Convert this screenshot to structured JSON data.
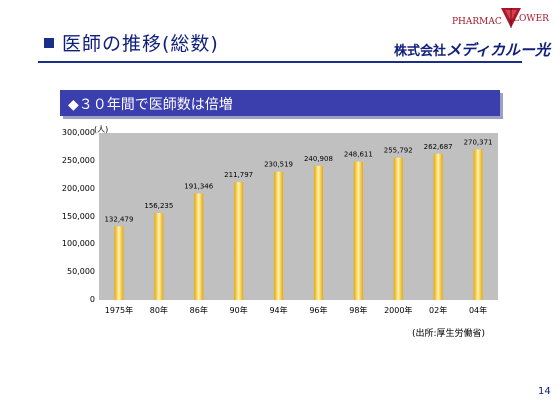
{
  "header": {
    "title": "医師の推移(総数)",
    "logo": {
      "brand_top_left": "PHARMAC",
      "brand_top_right": "LOWER",
      "company_prefix": "株式会社",
      "company_name": "メディカルー光"
    }
  },
  "banner": {
    "text": "◆３０年間で医師数は倍増"
  },
  "chart_data": {
    "type": "bar",
    "title": "",
    "ylabel": "(人)",
    "xlabel": "",
    "categories": [
      "1975年",
      "80年",
      "86年",
      "90年",
      "94年",
      "96年",
      "98年",
      "2000年",
      "02年",
      "04年"
    ],
    "values": [
      132479,
      156235,
      191346,
      211797,
      230519,
      240908,
      248611,
      255792,
      262687,
      270371
    ],
    "value_labels": [
      "132,479",
      "156,235",
      "191,346",
      "211,797",
      "230,519",
      "240,908",
      "248,611",
      "255,792",
      "262,687",
      "270,371"
    ],
    "ylim": [
      0,
      300000
    ],
    "yticks": [
      0,
      50000,
      100000,
      150000,
      200000,
      250000,
      300000
    ],
    "ytick_labels": [
      "0",
      "50,000",
      "100,000",
      "150,000",
      "200,000",
      "250,000",
      "300,000"
    ],
    "grid": false,
    "colors": {
      "plot_bg": "#c0c0c0",
      "bar_center": "#fff3b0",
      "bar_edge": "#e8a800"
    }
  },
  "footer": {
    "source": "(出所:厚生労働省)",
    "page_number": "14"
  }
}
